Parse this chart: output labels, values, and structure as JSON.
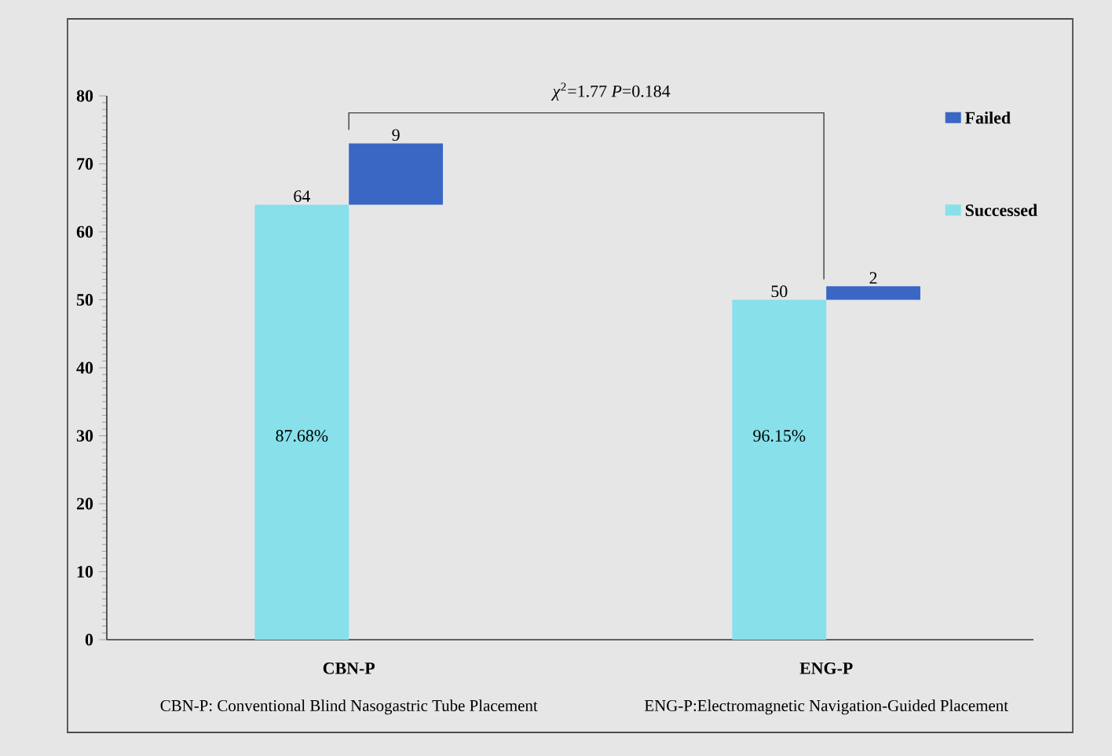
{
  "chart_data": {
    "type": "bar",
    "categories": [
      "CBN-P",
      "ENG-P"
    ],
    "series": [
      {
        "name": "Successed",
        "color": "#87e0ea",
        "values": [
          64,
          50
        ]
      },
      {
        "name": "Failed",
        "color": "#3a66c4",
        "values": [
          9,
          2
        ],
        "base": [
          64,
          50
        ]
      }
    ],
    "ylim": [
      0,
      80
    ],
    "yticks": [
      0,
      10,
      20,
      30,
      40,
      50,
      60,
      70,
      80
    ],
    "data_labels": true,
    "legend": "top right",
    "annotations": [
      "*χ*$^{2}$=1.77  *P*=0.184",
      {
        "text": "87.68%",
        "x": "CBN-P",
        "y": 30
      },
      {
        "text": "96.15%",
        "x": "ENG-P",
        "y": 30
      },
      "CBN-P: Conventional Blind Nasogastric Tube Placement",
      "ENG-P:Electromagnetic Navigation-Guided Placement"
    ]
  }
}
